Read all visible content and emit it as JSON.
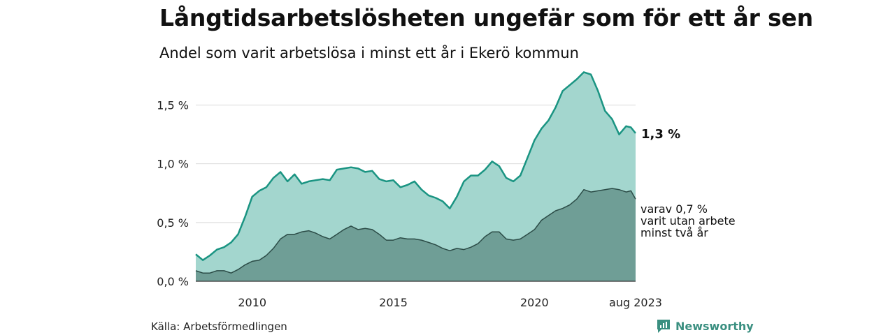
{
  "title": "Långtidsarbetslösheten ungefär som för ett år sen",
  "subtitle": "Andel som varit arbetslösa i minst ett år i Ekerö kommun",
  "source": "Källa: Arbetsförmedlingen",
  "brand": {
    "name": "Newsworthy",
    "icon": "newsworthy-logo-icon"
  },
  "colors": {
    "total_fill": "#a3d6ce",
    "total_line": "#1a9482",
    "longterm_fill": "#6f9e96",
    "longterm_line": "#2c4c47",
    "grid": "#d9d9d9",
    "brand": "#3a8f80"
  },
  "chart_data": {
    "type": "area",
    "ylim": [
      0,
      1.8
    ],
    "yticks": [
      {
        "value": 0.0,
        "label": "0,0 %"
      },
      {
        "value": 0.5,
        "label": "0,5 %"
      },
      {
        "value": 1.0,
        "label": "1,0 %"
      },
      {
        "value": 1.5,
        "label": "1,5 %"
      }
    ],
    "xlim": [
      "2008-01",
      "2023-08"
    ],
    "xticks": [
      {
        "x": "2010-01",
        "label": "2010"
      },
      {
        "x": "2015-01",
        "label": "2015"
      },
      {
        "x": "2020-01",
        "label": "2020"
      },
      {
        "x": "2023-08",
        "label": "aug 2023"
      }
    ],
    "grid": true,
    "series": [
      {
        "id": "total",
        "points": [
          [
            "2008-01",
            0.23
          ],
          [
            "2008-04",
            0.18
          ],
          [
            "2008-07",
            0.22
          ],
          [
            "2008-10",
            0.27
          ],
          [
            "2009-01",
            0.29
          ],
          [
            "2009-04",
            0.33
          ],
          [
            "2009-07",
            0.4
          ],
          [
            "2009-10",
            0.55
          ],
          [
            "2010-01",
            0.72
          ],
          [
            "2010-04",
            0.77
          ],
          [
            "2010-07",
            0.8
          ],
          [
            "2010-10",
            0.88
          ],
          [
            "2011-01",
            0.93
          ],
          [
            "2011-04",
            0.85
          ],
          [
            "2011-07",
            0.91
          ],
          [
            "2011-10",
            0.83
          ],
          [
            "2012-01",
            0.85
          ],
          [
            "2012-04",
            0.86
          ],
          [
            "2012-07",
            0.87
          ],
          [
            "2012-10",
            0.86
          ],
          [
            "2013-01",
            0.95
          ],
          [
            "2013-04",
            0.96
          ],
          [
            "2013-07",
            0.97
          ],
          [
            "2013-10",
            0.96
          ],
          [
            "2014-01",
            0.93
          ],
          [
            "2014-04",
            0.94
          ],
          [
            "2014-07",
            0.87
          ],
          [
            "2014-10",
            0.85
          ],
          [
            "2015-01",
            0.86
          ],
          [
            "2015-04",
            0.8
          ],
          [
            "2015-07",
            0.82
          ],
          [
            "2015-10",
            0.85
          ],
          [
            "2016-01",
            0.78
          ],
          [
            "2016-04",
            0.73
          ],
          [
            "2016-07",
            0.71
          ],
          [
            "2016-10",
            0.68
          ],
          [
            "2017-01",
            0.62
          ],
          [
            "2017-04",
            0.72
          ],
          [
            "2017-07",
            0.85
          ],
          [
            "2017-10",
            0.9
          ],
          [
            "2018-01",
            0.9
          ],
          [
            "2018-04",
            0.95
          ],
          [
            "2018-07",
            1.02
          ],
          [
            "2018-10",
            0.98
          ],
          [
            "2019-01",
            0.88
          ],
          [
            "2019-04",
            0.85
          ],
          [
            "2019-07",
            0.9
          ],
          [
            "2019-10",
            1.05
          ],
          [
            "2020-01",
            1.2
          ],
          [
            "2020-04",
            1.3
          ],
          [
            "2020-07",
            1.37
          ],
          [
            "2020-10",
            1.48
          ],
          [
            "2021-01",
            1.62
          ],
          [
            "2021-04",
            1.67
          ],
          [
            "2021-07",
            1.72
          ],
          [
            "2021-10",
            1.78
          ],
          [
            "2022-01",
            1.76
          ],
          [
            "2022-04",
            1.62
          ],
          [
            "2022-07",
            1.45
          ],
          [
            "2022-10",
            1.38
          ],
          [
            "2023-01",
            1.25
          ],
          [
            "2023-04",
            1.32
          ],
          [
            "2023-06",
            1.31
          ],
          [
            "2023-08",
            1.26
          ]
        ],
        "end_label": "1,3 %"
      },
      {
        "id": "longterm",
        "points": [
          [
            "2008-01",
            0.09
          ],
          [
            "2008-04",
            0.07
          ],
          [
            "2008-07",
            0.07
          ],
          [
            "2008-10",
            0.09
          ],
          [
            "2009-01",
            0.09
          ],
          [
            "2009-04",
            0.07
          ],
          [
            "2009-07",
            0.1
          ],
          [
            "2009-10",
            0.14
          ],
          [
            "2010-01",
            0.17
          ],
          [
            "2010-04",
            0.18
          ],
          [
            "2010-07",
            0.22
          ],
          [
            "2010-10",
            0.28
          ],
          [
            "2011-01",
            0.36
          ],
          [
            "2011-04",
            0.4
          ],
          [
            "2011-07",
            0.4
          ],
          [
            "2011-10",
            0.42
          ],
          [
            "2012-01",
            0.43
          ],
          [
            "2012-04",
            0.41
          ],
          [
            "2012-07",
            0.38
          ],
          [
            "2012-10",
            0.36
          ],
          [
            "2013-01",
            0.4
          ],
          [
            "2013-04",
            0.44
          ],
          [
            "2013-07",
            0.47
          ],
          [
            "2013-10",
            0.44
          ],
          [
            "2014-01",
            0.45
          ],
          [
            "2014-04",
            0.44
          ],
          [
            "2014-07",
            0.4
          ],
          [
            "2014-10",
            0.35
          ],
          [
            "2015-01",
            0.35
          ],
          [
            "2015-04",
            0.37
          ],
          [
            "2015-07",
            0.36
          ],
          [
            "2015-10",
            0.36
          ],
          [
            "2016-01",
            0.35
          ],
          [
            "2016-04",
            0.33
          ],
          [
            "2016-07",
            0.31
          ],
          [
            "2016-10",
            0.28
          ],
          [
            "2017-01",
            0.26
          ],
          [
            "2017-04",
            0.28
          ],
          [
            "2017-07",
            0.27
          ],
          [
            "2017-10",
            0.29
          ],
          [
            "2018-01",
            0.32
          ],
          [
            "2018-04",
            0.38
          ],
          [
            "2018-07",
            0.42
          ],
          [
            "2018-10",
            0.42
          ],
          [
            "2019-01",
            0.36
          ],
          [
            "2019-04",
            0.35
          ],
          [
            "2019-07",
            0.36
          ],
          [
            "2019-10",
            0.4
          ],
          [
            "2020-01",
            0.44
          ],
          [
            "2020-04",
            0.52
          ],
          [
            "2020-07",
            0.56
          ],
          [
            "2020-10",
            0.6
          ],
          [
            "2021-01",
            0.62
          ],
          [
            "2021-04",
            0.65
          ],
          [
            "2021-07",
            0.7
          ],
          [
            "2021-10",
            0.78
          ],
          [
            "2022-01",
            0.76
          ],
          [
            "2022-04",
            0.77
          ],
          [
            "2022-07",
            0.78
          ],
          [
            "2022-10",
            0.79
          ],
          [
            "2023-01",
            0.78
          ],
          [
            "2023-04",
            0.76
          ],
          [
            "2023-06",
            0.77
          ],
          [
            "2023-08",
            0.7
          ]
        ],
        "end_label_lines": [
          "varav 0,7 %",
          "varit utan arbete",
          "minst två år"
        ]
      }
    ]
  }
}
